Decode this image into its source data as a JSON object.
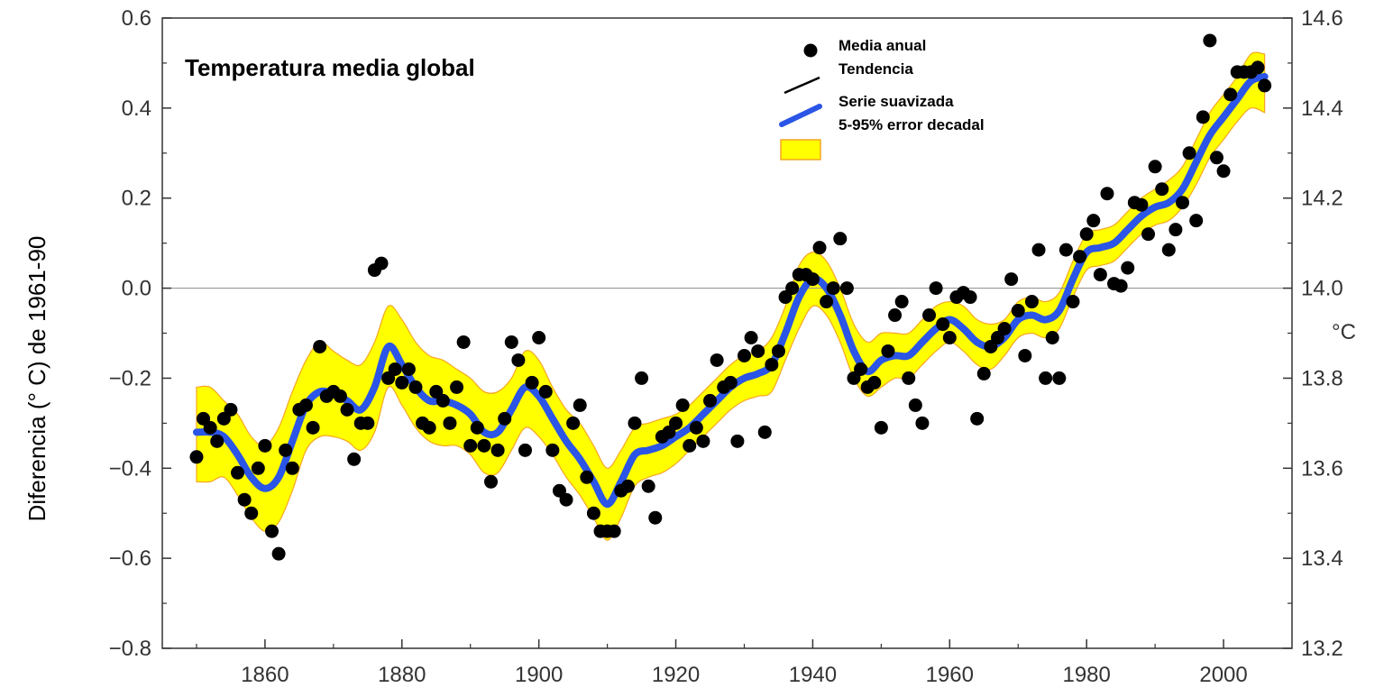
{
  "chart_data": {
    "type": "scatter",
    "title": "Temperatura media global",
    "ylabel": "Diferencia (°   C) de 1961-90",
    "y2_unit": "°C",
    "xlim": [
      1845,
      2010
    ],
    "ylim": [
      -0.8,
      0.6
    ],
    "y2lim": [
      13.2,
      14.6
    ],
    "x_ticks": [
      1860,
      1880,
      1900,
      1920,
      1940,
      1960,
      1980,
      2000
    ],
    "y_ticks": [
      -0.8,
      -0.6,
      -0.4,
      -0.2,
      0.0,
      0.2,
      0.4,
      0.6
    ],
    "y_tick_labels": [
      "−0.8",
      "−0.6",
      "−0.4",
      "−0.2",
      "0.0",
      "0.2",
      "0.4",
      "0.6"
    ],
    "y2_ticks": [
      13.2,
      13.4,
      13.6,
      13.8,
      14.0,
      14.2,
      14.4,
      14.6
    ],
    "y2_tick_labels": [
      "13.2",
      "13.4",
      "13.6",
      "13.8",
      "14.0",
      "14.2",
      "14.4",
      "14.6"
    ],
    "legend": [
      "Media anual",
      "Tendencia",
      "Serie suavizada",
      "5-95% error decadal"
    ],
    "legend_position": "top-right",
    "colors": {
      "points": "#000000",
      "smoothed": "#2A55E6",
      "band": "#FFFF00",
      "band_edge": "#F5A623",
      "zero_line": "#999999"
    },
    "series": [
      {
        "name": "Media anual",
        "type": "scatter",
        "x": [
          1850,
          1851,
          1852,
          1853,
          1854,
          1855,
          1856,
          1857,
          1858,
          1859,
          1860,
          1861,
          1862,
          1863,
          1864,
          1865,
          1866,
          1867,
          1868,
          1869,
          1870,
          1871,
          1872,
          1873,
          1874,
          1875,
          1876,
          1877,
          1878,
          1879,
          1880,
          1881,
          1882,
          1883,
          1884,
          1885,
          1886,
          1887,
          1888,
          1889,
          1890,
          1891,
          1892,
          1893,
          1894,
          1895,
          1896,
          1897,
          1898,
          1899,
          1900,
          1901,
          1902,
          1903,
          1904,
          1905,
          1906,
          1907,
          1908,
          1909,
          1910,
          1911,
          1912,
          1913,
          1914,
          1915,
          1916,
          1917,
          1918,
          1919,
          1920,
          1921,
          1922,
          1923,
          1924,
          1925,
          1926,
          1927,
          1928,
          1929,
          1930,
          1931,
          1932,
          1933,
          1934,
          1935,
          1936,
          1937,
          1938,
          1939,
          1940,
          1941,
          1942,
          1943,
          1944,
          1945,
          1946,
          1947,
          1948,
          1949,
          1950,
          1951,
          1952,
          1953,
          1954,
          1955,
          1956,
          1957,
          1958,
          1959,
          1960,
          1961,
          1962,
          1963,
          1964,
          1965,
          1966,
          1967,
          1968,
          1969,
          1970,
          1971,
          1972,
          1973,
          1974,
          1975,
          1976,
          1977,
          1978,
          1979,
          1980,
          1981,
          1982,
          1983,
          1984,
          1985,
          1986,
          1987,
          1988,
          1989,
          1990,
          1991,
          1992,
          1993,
          1994,
          1995,
          1996,
          1997,
          1998,
          1999,
          2000,
          2001,
          2002,
          2003,
          2004,
          2005,
          2006
        ],
        "y": [
          -0.375,
          -0.29,
          -0.31,
          -0.34,
          -0.29,
          -0.27,
          -0.41,
          -0.47,
          -0.5,
          -0.4,
          -0.35,
          -0.54,
          -0.59,
          -0.36,
          -0.4,
          -0.27,
          -0.26,
          -0.31,
          -0.13,
          -0.24,
          -0.23,
          -0.24,
          -0.27,
          -0.38,
          -0.3,
          -0.3,
          0.04,
          0.055,
          -0.2,
          -0.18,
          -0.21,
          -0.18,
          -0.22,
          -0.3,
          -0.31,
          -0.23,
          -0.25,
          -0.3,
          -0.22,
          -0.12,
          -0.35,
          -0.31,
          -0.35,
          -0.43,
          -0.36,
          -0.29,
          -0.12,
          -0.16,
          -0.36,
          -0.21,
          -0.11,
          -0.23,
          -0.36,
          -0.45,
          -0.47,
          -0.3,
          -0.26,
          -0.42,
          -0.5,
          -0.54,
          -0.54,
          -0.54,
          -0.45,
          -0.44,
          -0.3,
          -0.2,
          -0.44,
          -0.51,
          -0.33,
          -0.32,
          -0.3,
          -0.26,
          -0.35,
          -0.31,
          -0.34,
          -0.25,
          -0.16,
          -0.22,
          -0.21,
          -0.34,
          -0.15,
          -0.11,
          -0.14,
          -0.32,
          -0.17,
          -0.14,
          -0.02,
          0.0,
          0.03,
          0.03,
          0.02,
          0.09,
          -0.03,
          0.0,
          0.11,
          0.0,
          -0.2,
          -0.18,
          -0.22,
          -0.21,
          -0.31,
          -0.14,
          -0.06,
          -0.03,
          -0.2,
          -0.26,
          -0.3,
          -0.06,
          0.0,
          -0.08,
          -0.11,
          -0.02,
          -0.01,
          -0.02,
          -0.29,
          -0.19,
          -0.13,
          -0.11,
          -0.09,
          0.02,
          -0.05,
          -0.15,
          -0.03,
          0.085,
          -0.2,
          -0.11,
          -0.2,
          0.085,
          -0.03,
          0.07,
          0.12,
          0.15,
          0.03,
          0.21,
          0.01,
          0.005,
          0.045,
          0.19,
          0.185,
          0.12,
          0.27,
          0.22,
          0.085,
          0.13,
          0.19,
          0.3,
          0.15,
          0.38,
          0.55,
          0.29,
          0.26,
          0.43,
          0.48,
          0.48,
          0.48,
          0.49,
          0.45
        ]
      },
      {
        "name": "Serie suavizada",
        "type": "line",
        "x": [
          1850,
          1852,
          1854,
          1856,
          1858,
          1860,
          1862,
          1864,
          1866,
          1868,
          1870,
          1872,
          1874,
          1876,
          1878,
          1880,
          1882,
          1884,
          1886,
          1888,
          1890,
          1892,
          1894,
          1896,
          1898,
          1900,
          1902,
          1904,
          1906,
          1908,
          1910,
          1912,
          1914,
          1916,
          1918,
          1920,
          1922,
          1924,
          1926,
          1928,
          1930,
          1932,
          1934,
          1936,
          1938,
          1940,
          1942,
          1944,
          1946,
          1948,
          1950,
          1952,
          1954,
          1956,
          1958,
          1960,
          1962,
          1964,
          1966,
          1968,
          1970,
          1972,
          1974,
          1976,
          1978,
          1980,
          1982,
          1984,
          1986,
          1988,
          1990,
          1992,
          1994,
          1996,
          1998,
          2000,
          2002,
          2004,
          2006
        ],
        "y": [
          -0.32,
          -0.32,
          -0.33,
          -0.37,
          -0.42,
          -0.445,
          -0.42,
          -0.34,
          -0.26,
          -0.23,
          -0.235,
          -0.25,
          -0.27,
          -0.22,
          -0.13,
          -0.17,
          -0.22,
          -0.25,
          -0.25,
          -0.26,
          -0.28,
          -0.32,
          -0.32,
          -0.27,
          -0.22,
          -0.24,
          -0.29,
          -0.34,
          -0.38,
          -0.43,
          -0.48,
          -0.43,
          -0.37,
          -0.36,
          -0.35,
          -0.33,
          -0.31,
          -0.28,
          -0.25,
          -0.22,
          -0.2,
          -0.19,
          -0.17,
          -0.1,
          -0.02,
          0.02,
          0.0,
          -0.06,
          -0.14,
          -0.185,
          -0.16,
          -0.15,
          -0.15,
          -0.12,
          -0.09,
          -0.07,
          -0.09,
          -0.12,
          -0.13,
          -0.11,
          -0.07,
          -0.06,
          -0.07,
          -0.05,
          0.02,
          0.08,
          0.09,
          0.1,
          0.13,
          0.16,
          0.18,
          0.19,
          0.22,
          0.28,
          0.34,
          0.38,
          0.42,
          0.46,
          0.47
        ]
      },
      {
        "name": "5-95% error decadal",
        "type": "band",
        "x": [
          1850,
          1852,
          1854,
          1856,
          1858,
          1860,
          1862,
          1864,
          1866,
          1868,
          1870,
          1872,
          1874,
          1876,
          1878,
          1880,
          1882,
          1884,
          1886,
          1888,
          1890,
          1892,
          1894,
          1896,
          1898,
          1900,
          1902,
          1904,
          1906,
          1908,
          1910,
          1912,
          1914,
          1916,
          1918,
          1920,
          1922,
          1924,
          1926,
          1928,
          1930,
          1932,
          1934,
          1936,
          1938,
          1940,
          1942,
          1944,
          1946,
          1948,
          1950,
          1952,
          1954,
          1956,
          1958,
          1960,
          1962,
          1964,
          1966,
          1968,
          1970,
          1972,
          1974,
          1976,
          1978,
          1980,
          1982,
          1984,
          1986,
          1988,
          1990,
          1992,
          1994,
          1996,
          1998,
          2000,
          2002,
          2004,
          2006
        ],
        "upper": [
          -0.22,
          -0.22,
          -0.25,
          -0.28,
          -0.33,
          -0.35,
          -0.31,
          -0.23,
          -0.16,
          -0.12,
          -0.14,
          -0.16,
          -0.17,
          -0.12,
          -0.04,
          -0.07,
          -0.12,
          -0.15,
          -0.16,
          -0.18,
          -0.2,
          -0.23,
          -0.23,
          -0.2,
          -0.14,
          -0.16,
          -0.22,
          -0.27,
          -0.3,
          -0.35,
          -0.4,
          -0.36,
          -0.31,
          -0.3,
          -0.29,
          -0.28,
          -0.26,
          -0.23,
          -0.2,
          -0.17,
          -0.15,
          -0.14,
          -0.11,
          -0.04,
          0.05,
          0.08,
          0.06,
          0.0,
          -0.08,
          -0.12,
          -0.1,
          -0.1,
          -0.1,
          -0.07,
          -0.04,
          -0.03,
          -0.04,
          -0.07,
          -0.08,
          -0.07,
          -0.03,
          -0.02,
          -0.03,
          -0.01,
          0.06,
          0.12,
          0.13,
          0.14,
          0.17,
          0.2,
          0.22,
          0.24,
          0.27,
          0.33,
          0.39,
          0.43,
          0.47,
          0.52,
          0.52
        ],
        "lower": [
          -0.43,
          -0.43,
          -0.42,
          -0.46,
          -0.51,
          -0.54,
          -0.52,
          -0.45,
          -0.36,
          -0.33,
          -0.33,
          -0.34,
          -0.36,
          -0.32,
          -0.22,
          -0.26,
          -0.31,
          -0.34,
          -0.35,
          -0.35,
          -0.37,
          -0.41,
          -0.41,
          -0.36,
          -0.31,
          -0.33,
          -0.37,
          -0.42,
          -0.46,
          -0.51,
          -0.56,
          -0.51,
          -0.44,
          -0.42,
          -0.41,
          -0.39,
          -0.36,
          -0.33,
          -0.3,
          -0.27,
          -0.25,
          -0.24,
          -0.23,
          -0.16,
          -0.09,
          -0.04,
          -0.06,
          -0.12,
          -0.2,
          -0.24,
          -0.22,
          -0.2,
          -0.2,
          -0.17,
          -0.14,
          -0.12,
          -0.14,
          -0.17,
          -0.18,
          -0.15,
          -0.11,
          -0.1,
          -0.11,
          -0.09,
          -0.02,
          0.04,
          0.05,
          0.06,
          0.09,
          0.12,
          0.14,
          0.15,
          0.18,
          0.23,
          0.29,
          0.33,
          0.37,
          0.4,
          0.39
        ]
      }
    ]
  }
}
